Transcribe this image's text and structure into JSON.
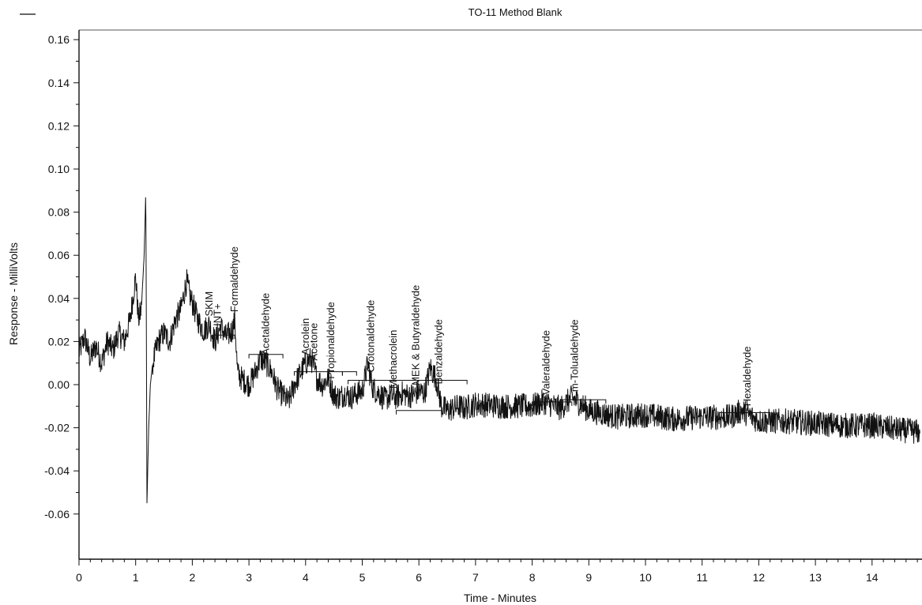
{
  "chart_data": {
    "type": "line",
    "title": "TO-11 Method Blank",
    "xlabel": "Time - Minutes",
    "ylabel": "Response - MilliVolts",
    "xlim": [
      0,
      14.85
    ],
    "ylim": [
      -0.08,
      0.165
    ],
    "xticks": [
      "0",
      "1",
      "2",
      "3",
      "4",
      "5",
      "6",
      "7",
      "8",
      "9",
      "10",
      "11",
      "12",
      "13",
      "14"
    ],
    "yticks": [
      "0.16",
      "0.14",
      "0.12",
      "0.10",
      "0.08",
      "0.06",
      "0.04",
      "0.02",
      "0.00",
      "-0.02",
      "-0.04",
      "-0.06"
    ],
    "grid": false,
    "series": [
      {
        "x": [
          0,
          0.1,
          0.2,
          0.3,
          0.4,
          0.5,
          0.6,
          0.7,
          0.8,
          0.9,
          1.0,
          1.05,
          1.1,
          1.15,
          1.18,
          1.2,
          1.23,
          1.26,
          1.3,
          1.4,
          1.5,
          1.6,
          1.7,
          1.8,
          1.9,
          1.95,
          2.0,
          2.1,
          2.2,
          2.3,
          2.4,
          2.5,
          2.6,
          2.7,
          2.75,
          2.8,
          2.9,
          3.0,
          3.1,
          3.2,
          3.3,
          3.4,
          3.5,
          3.6,
          3.7,
          3.8,
          3.9,
          4.0,
          4.1,
          4.2,
          4.3,
          4.4,
          4.5,
          4.6,
          4.7,
          4.8,
          4.9,
          5.0,
          5.1,
          5.15,
          5.2,
          5.3,
          5.4,
          5.5,
          5.6,
          5.7,
          5.8,
          5.9,
          6.0,
          6.1,
          6.2,
          6.3,
          6.4,
          6.5,
          6.6,
          6.7,
          6.8,
          6.9,
          7.0,
          7.5,
          8.0,
          8.2,
          8.5,
          8.7,
          9.0,
          9.5,
          10.0,
          10.5,
          11.0,
          11.5,
          11.7,
          12.0,
          12.5,
          13.0,
          13.5,
          14.0,
          14.5,
          14.85
        ],
        "y": [
          0.015,
          0.022,
          0.012,
          0.018,
          0.01,
          0.02,
          0.016,
          0.024,
          0.02,
          0.03,
          0.05,
          0.03,
          0.035,
          0.06,
          0.091,
          -0.055,
          -0.02,
          0.0,
          0.01,
          0.02,
          0.024,
          0.02,
          0.03,
          0.035,
          0.048,
          0.042,
          0.038,
          0.03,
          0.025,
          0.028,
          0.02,
          0.027,
          0.022,
          0.025,
          0.03,
          0.005,
          0.002,
          0.0,
          0.005,
          0.012,
          0.01,
          0.006,
          -0.002,
          -0.005,
          -0.008,
          0.0,
          0.005,
          0.01,
          0.012,
          0.003,
          0.0,
          0.003,
          -0.005,
          -0.006,
          -0.004,
          -0.006,
          -0.004,
          -0.003,
          0.01,
          0.002,
          -0.002,
          -0.004,
          -0.007,
          -0.005,
          -0.006,
          -0.004,
          -0.005,
          -0.005,
          -0.003,
          -0.004,
          0.008,
          0.003,
          -0.01,
          -0.012,
          -0.011,
          -0.01,
          -0.011,
          -0.01,
          -0.009,
          -0.01,
          -0.01,
          -0.008,
          -0.011,
          -0.006,
          -0.012,
          -0.015,
          -0.014,
          -0.016,
          -0.015,
          -0.015,
          -0.012,
          -0.017,
          -0.017,
          -0.018,
          -0.019,
          -0.019,
          -0.021,
          -0.022
        ]
      }
    ],
    "peaks": [
      {
        "name": "SKIM",
        "time": 2.3
      },
      {
        "name": "INT+",
        "time": 2.45
      },
      {
        "name": "Formaldehyde",
        "time": 2.75
      },
      {
        "name": "Acetaldehyde",
        "time": 3.3
      },
      {
        "name": "Acrolein",
        "time": 4.0
      },
      {
        "name": "Acetone",
        "time": 4.15
      },
      {
        "name": "Propionaldehyde",
        "time": 4.45
      },
      {
        "name": "Crotonaldehyde",
        "time": 5.15
      },
      {
        "name": "Methacrolein",
        "time": 5.55
      },
      {
        "name": "MEK & Butyraldehyde",
        "time": 5.95
      },
      {
        "name": "Benzaldehyde",
        "time": 6.35
      },
      {
        "name": "Valeraldehyde",
        "time": 8.25
      },
      {
        "name": "m-Tolualdehyde",
        "time": 8.75
      },
      {
        "name": "Hexaldehyde",
        "time": 11.8
      }
    ],
    "baselines": [
      {
        "x": [
          2.35,
          2.75
        ],
        "y": 0.023
      },
      {
        "x": [
          3.0,
          3.6
        ],
        "y": 0.014
      },
      {
        "x": [
          3.8,
          4.65
        ],
        "y": 0.006
      },
      {
        "x": [
          4.65,
          4.9
        ],
        "y": 0.006
      },
      {
        "x": [
          4.75,
          6.85
        ],
        "y": 0.002
      },
      {
        "x": [
          5.6,
          6.4
        ],
        "y": -0.012
      },
      {
        "x": [
          8.0,
          8.7
        ],
        "y": -0.008
      },
      {
        "x": [
          8.5,
          9.3
        ],
        "y": -0.007
      },
      {
        "x": [
          11.3,
          12.2
        ],
        "y": -0.013
      }
    ]
  }
}
